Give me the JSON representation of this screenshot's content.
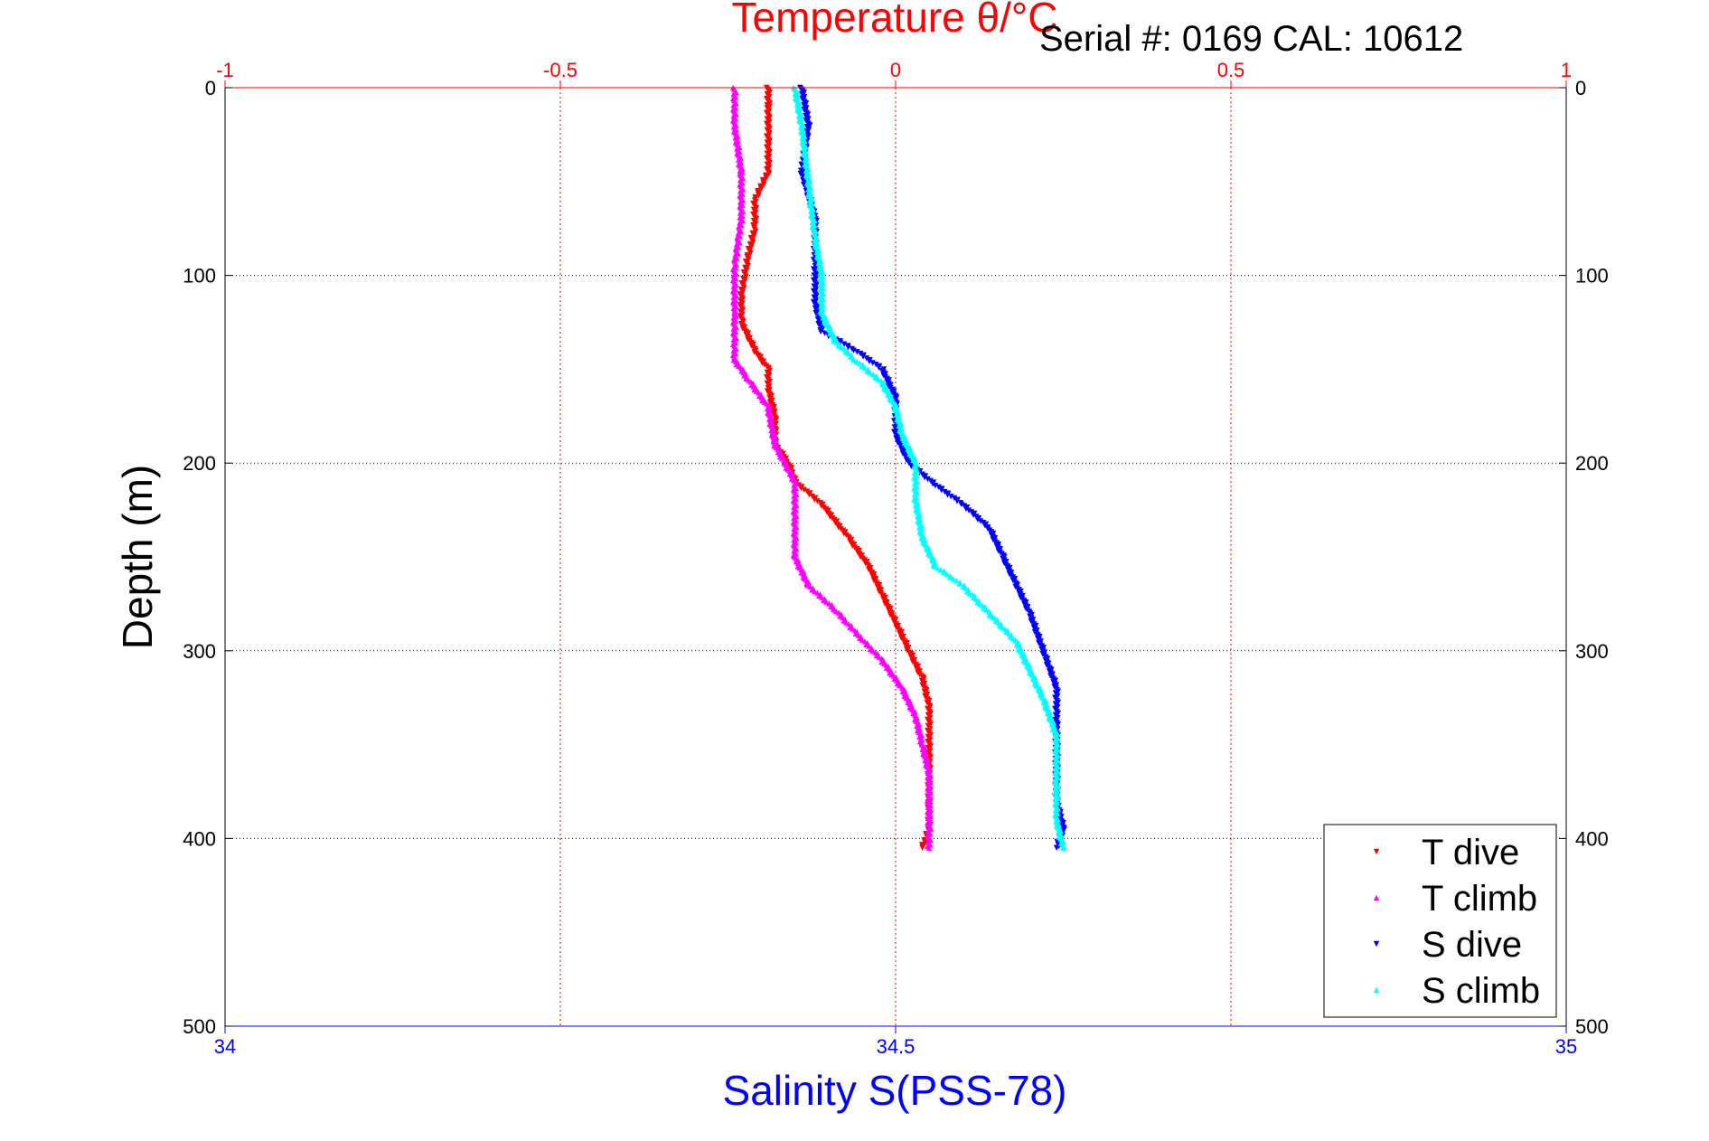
{
  "chart_data": {
    "type": "scatter",
    "title": "Temperature θ/°C",
    "annotation": "Serial #: 0169 CAL: 10612",
    "xlabel": "Salinity S(PSS-78)",
    "ylabel": "Depth (m)",
    "top_axis": {
      "label": "Temperature θ/°C",
      "range": [
        -1,
        1
      ],
      "ticks": [
        "-1",
        "-0.5",
        "0",
        "0.5",
        "1"
      ],
      "color": "#ff0000"
    },
    "bottom_axis": {
      "label": "Salinity S(PSS-78)",
      "range": [
        34,
        35
      ],
      "ticks": [
        "34",
        "34.5",
        "35"
      ],
      "color": "#0000ff"
    },
    "y_axis": {
      "label": "Depth (m)",
      "range": [
        0,
        500
      ],
      "reversed": true,
      "ticks": [
        "0",
        "100",
        "200",
        "300",
        "400",
        "500"
      ]
    },
    "grid": true,
    "legend_position": "bottom-right",
    "series": [
      {
        "name": "T dive",
        "axis": "temperature",
        "color": "#ff0000",
        "marker": "triangle-down",
        "points": [
          [
            -0.19,
            0
          ],
          [
            -0.19,
            10
          ],
          [
            -0.19,
            25
          ],
          [
            -0.19,
            45
          ],
          [
            -0.21,
            60
          ],
          [
            -0.21,
            75
          ],
          [
            -0.22,
            90
          ],
          [
            -0.23,
            110
          ],
          [
            -0.23,
            125
          ],
          [
            -0.21,
            140
          ],
          [
            -0.19,
            150
          ],
          [
            -0.19,
            160
          ],
          [
            -0.18,
            175
          ],
          [
            -0.18,
            190
          ],
          [
            -0.16,
            200
          ],
          [
            -0.15,
            210
          ],
          [
            -0.11,
            222
          ],
          [
            -0.07,
            240
          ],
          [
            -0.04,
            255
          ],
          [
            -0.02,
            270
          ],
          [
            0.0,
            285
          ],
          [
            0.02,
            300
          ],
          [
            0.04,
            315
          ],
          [
            0.05,
            330
          ],
          [
            0.05,
            350
          ],
          [
            0.05,
            370
          ],
          [
            0.05,
            385
          ],
          [
            0.05,
            395
          ],
          [
            0.04,
            405
          ]
        ]
      },
      {
        "name": "T climb",
        "axis": "temperature",
        "color": "#ff00ff",
        "marker": "triangle-up",
        "points": [
          [
            -0.24,
            0
          ],
          [
            -0.24,
            20
          ],
          [
            -0.23,
            45
          ],
          [
            -0.23,
            70
          ],
          [
            -0.24,
            95
          ],
          [
            -0.24,
            120
          ],
          [
            -0.24,
            145
          ],
          [
            -0.22,
            155
          ],
          [
            -0.19,
            170
          ],
          [
            -0.18,
            190
          ],
          [
            -0.15,
            210
          ],
          [
            -0.15,
            230
          ],
          [
            -0.15,
            250
          ],
          [
            -0.13,
            265
          ],
          [
            -0.09,
            278
          ],
          [
            -0.06,
            290
          ],
          [
            -0.02,
            305
          ],
          [
            0.01,
            320
          ],
          [
            0.03,
            335
          ],
          [
            0.04,
            350
          ],
          [
            0.05,
            365
          ],
          [
            0.05,
            380
          ],
          [
            0.05,
            395
          ],
          [
            0.05,
            405
          ]
        ]
      },
      {
        "name": "S dive",
        "axis": "salinity",
        "color": "#0000ff",
        "marker": "triangle-down",
        "points": [
          [
            34.43,
            0
          ],
          [
            34.435,
            20
          ],
          [
            34.43,
            45
          ],
          [
            34.44,
            70
          ],
          [
            34.44,
            95
          ],
          [
            34.44,
            115
          ],
          [
            34.445,
            130
          ],
          [
            34.47,
            140
          ],
          [
            34.49,
            150
          ],
          [
            34.5,
            165
          ],
          [
            34.5,
            185
          ],
          [
            34.51,
            200
          ],
          [
            34.53,
            212
          ],
          [
            34.55,
            222
          ],
          [
            34.57,
            235
          ],
          [
            34.58,
            250
          ],
          [
            34.59,
            265
          ],
          [
            34.6,
            280
          ],
          [
            34.61,
            300
          ],
          [
            34.62,
            320
          ],
          [
            34.62,
            340
          ],
          [
            34.62,
            360
          ],
          [
            34.62,
            380
          ],
          [
            34.625,
            395
          ],
          [
            34.62,
            405
          ]
        ]
      },
      {
        "name": "S climb",
        "axis": "salinity",
        "color": "#00ffff",
        "marker": "triangle-up",
        "points": [
          [
            34.425,
            0
          ],
          [
            34.43,
            20
          ],
          [
            34.435,
            50
          ],
          [
            34.44,
            80
          ],
          [
            34.445,
            100
          ],
          [
            34.445,
            120
          ],
          [
            34.455,
            135
          ],
          [
            34.47,
            145
          ],
          [
            34.49,
            157
          ],
          [
            34.5,
            170
          ],
          [
            34.505,
            185
          ],
          [
            34.515,
            200
          ],
          [
            34.515,
            220
          ],
          [
            34.52,
            240
          ],
          [
            34.53,
            255
          ],
          [
            34.55,
            265
          ],
          [
            34.57,
            280
          ],
          [
            34.59,
            295
          ],
          [
            34.6,
            310
          ],
          [
            34.61,
            325
          ],
          [
            34.62,
            345
          ],
          [
            34.62,
            370
          ],
          [
            34.62,
            390
          ],
          [
            34.625,
            405
          ]
        ]
      }
    ]
  }
}
